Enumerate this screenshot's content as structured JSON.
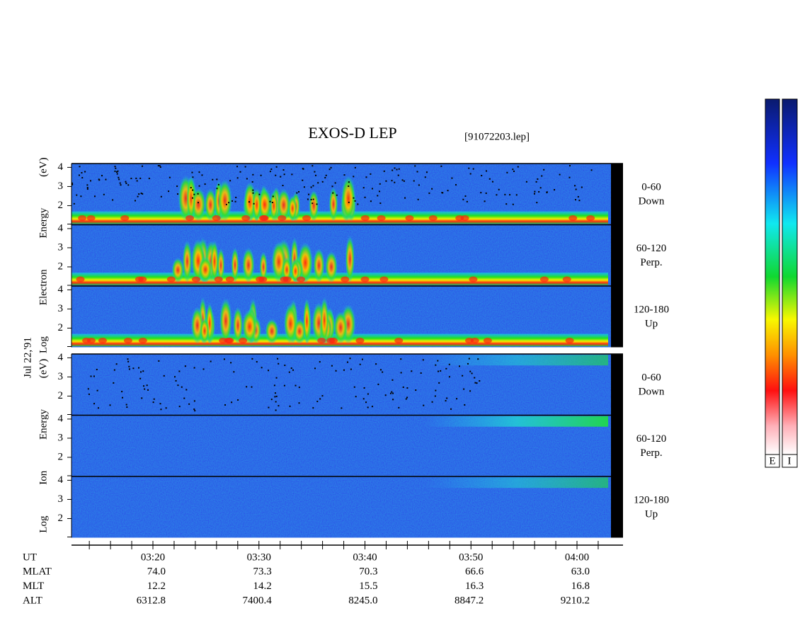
{
  "chart_data": {
    "type": "spectrogram",
    "title": "EXOS-D LEP",
    "file": "[91072203.lep]",
    "date_label": "Jul 22,'91",
    "groups": [
      {
        "ylabel": "Log Electron Energy (eV)",
        "panels": [
          {
            "angle": "0-60",
            "direction": "Down"
          },
          {
            "angle": "60-120",
            "direction": "Perp."
          },
          {
            "angle": "120-180",
            "direction": "Up"
          }
        ]
      },
      {
        "ylabel": "Log Ion Energy (eV)",
        "panels": [
          {
            "angle": "0-60",
            "direction": "Down"
          },
          {
            "angle": "60-120",
            "direction": "Perp."
          },
          {
            "angle": "120-180",
            "direction": "Up"
          }
        ]
      }
    ],
    "ylim": [
      1,
      4.2
    ],
    "yticks": [
      2,
      3,
      4
    ],
    "x_label": "UT",
    "x": [
      "03:20",
      "03:30",
      "03:40",
      "03:50",
      "04:00"
    ],
    "table": {
      "rows": [
        {
          "label": "MLAT",
          "cells": [
            "74.0",
            "73.3",
            "70.3",
            "66.6",
            "63.0"
          ]
        },
        {
          "label": "MLT",
          "cells": [
            "12.2",
            "14.2",
            "15.5",
            "16.3",
            "16.8"
          ]
        },
        {
          "label": "ALT",
          "cells": [
            "6312.8",
            "7400.4",
            "8245.0",
            "8847.2",
            "9210.2"
          ]
        }
      ]
    },
    "colorbars": [
      {
        "label": "E"
      },
      {
        "label": "I"
      }
    ]
  }
}
